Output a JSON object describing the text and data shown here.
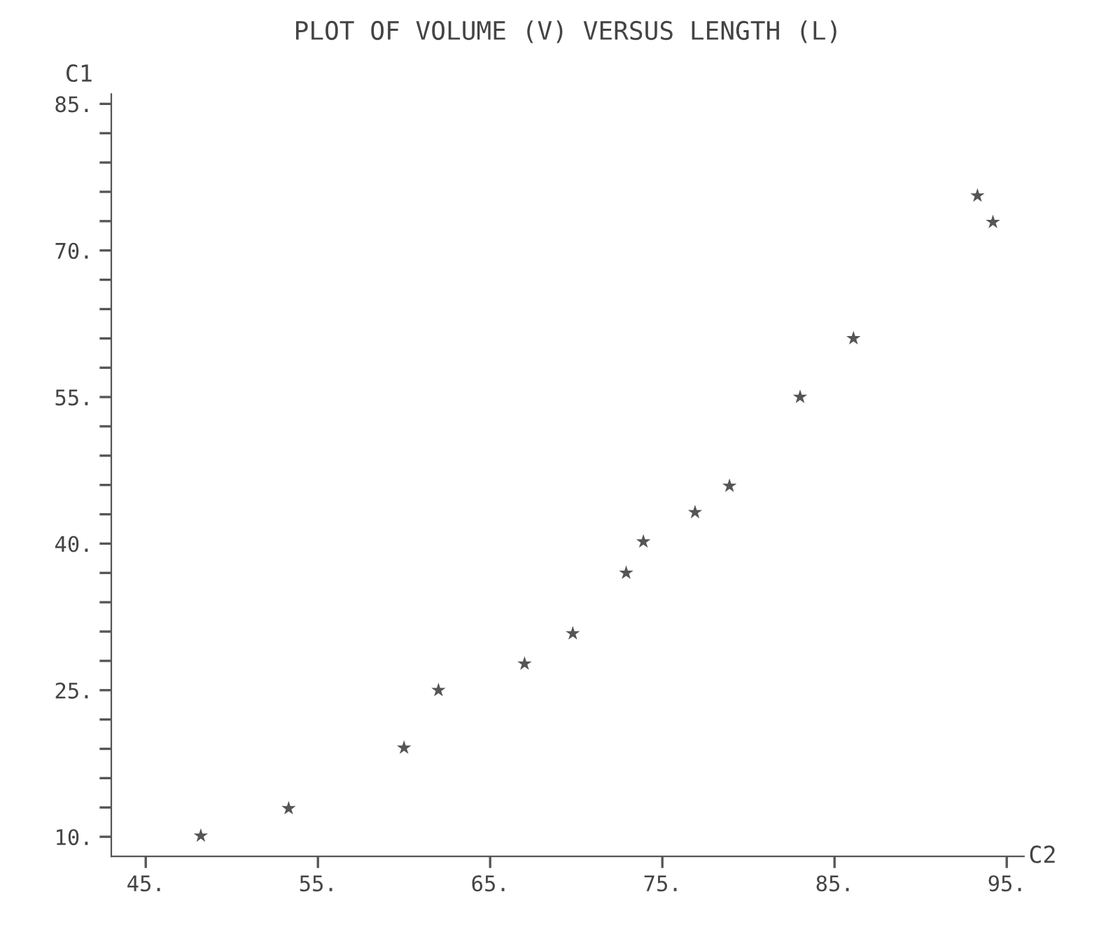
{
  "chart_data": {
    "type": "scatter",
    "title": "PLOT OF VOLUME (V) VERSUS LENGTH (L)",
    "xlabel": "C2",
    "ylabel": "C1",
    "x": [
      48.2,
      53.3,
      60.0,
      62.0,
      67.0,
      69.8,
      72.9,
      73.9,
      76.9,
      78.9,
      83.0,
      86.1,
      93.3,
      94.2
    ],
    "series": [
      {
        "color": "#555555",
        "values": [
          10.1,
          12.9,
          19.1,
          25.0,
          27.7,
          30.8,
          37.0,
          40.2,
          43.2,
          45.9,
          55.0,
          61.0,
          75.6,
          72.9
        ]
      }
    ],
    "marker": "star",
    "grid": false,
    "legend": false,
    "xlim": [
      43,
      96
    ],
    "ylim": [
      8,
      86
    ],
    "xticks": [
      {
        "value": 45,
        "label": "45."
      },
      {
        "value": 55,
        "label": "55."
      },
      {
        "value": 65,
        "label": "65."
      },
      {
        "value": 75,
        "label": "75."
      },
      {
        "value": 85,
        "label": "85."
      },
      {
        "value": 95,
        "label": "95."
      }
    ],
    "yticks": [
      {
        "value": 10,
        "label": "10."
      },
      {
        "value": 13,
        "label": null
      },
      {
        "value": 16,
        "label": null
      },
      {
        "value": 19,
        "label": null
      },
      {
        "value": 22,
        "label": null
      },
      {
        "value": 25,
        "label": "25."
      },
      {
        "value": 28,
        "label": null
      },
      {
        "value": 31,
        "label": null
      },
      {
        "value": 34,
        "label": null
      },
      {
        "value": 37,
        "label": null
      },
      {
        "value": 40,
        "label": "40."
      },
      {
        "value": 43,
        "label": null
      },
      {
        "value": 46,
        "label": null
      },
      {
        "value": 49,
        "label": null
      },
      {
        "value": 52,
        "label": null
      },
      {
        "value": 55,
        "label": "55."
      },
      {
        "value": 58,
        "label": null
      },
      {
        "value": 61,
        "label": null
      },
      {
        "value": 64,
        "label": null
      },
      {
        "value": 67,
        "label": null
      },
      {
        "value": 70,
        "label": "70."
      },
      {
        "value": 73,
        "label": null
      },
      {
        "value": 76,
        "label": null
      },
      {
        "value": 79,
        "label": null
      },
      {
        "value": 82,
        "label": null
      },
      {
        "value": 85,
        "label": "85."
      }
    ]
  }
}
